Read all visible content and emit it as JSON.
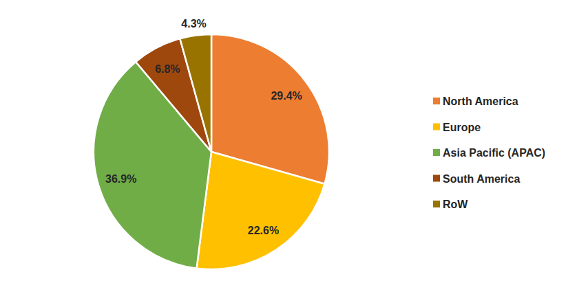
{
  "chart_data": {
    "type": "pie",
    "categories": [
      "North America",
      "Europe",
      "Asia Pacific (APAC)",
      "South America",
      "RoW"
    ],
    "values": [
      29.4,
      22.6,
      36.9,
      6.8,
      4.3
    ],
    "value_labels": [
      "29.4%",
      "22.6%",
      "36.9%",
      "6.8%",
      "4.3%"
    ],
    "colors": [
      "#ed7d31",
      "#ffc000",
      "#70ad47",
      "#9e480e",
      "#997300"
    ],
    "data_labels": true,
    "legend": "right"
  }
}
